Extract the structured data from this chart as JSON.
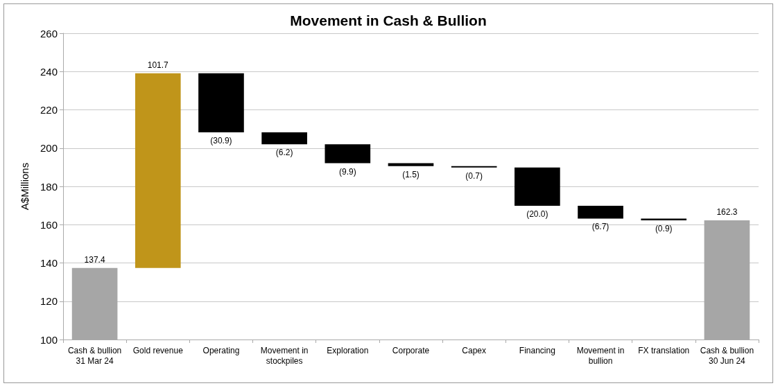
{
  "chart_data": {
    "type": "bar",
    "title": "Movement in Cash & Bullion",
    "ylabel": "A$Millions",
    "categories": [
      "Cash & bullion\n31 Mar 24",
      "Gold revenue",
      "Operating",
      "Movement in\nstockpiles",
      "Exploration",
      "Corporate",
      "Capex",
      "Financing",
      "Movement in\nbullion",
      "FX translation",
      "Cash & bullion\n30 Jun 24"
    ],
    "values": [
      137.4,
      101.7,
      -30.9,
      -6.2,
      -9.9,
      -1.5,
      -0.7,
      -20.0,
      -6.7,
      -0.9,
      162.3
    ],
    "base": [
      null,
      137.4,
      239.1,
      208.2,
      202.0,
      192.1,
      190.6,
      189.9,
      169.9,
      163.2,
      null
    ],
    "colors": [
      "#a6a6a6",
      "#c0951a",
      "#000000",
      "#000000",
      "#000000",
      "#000000",
      "#000000",
      "#000000",
      "#000000",
      "#000000",
      "#a6a6a6"
    ],
    "value_labels": [
      "137.4",
      "101.7",
      "(30.9)",
      "(6.2)",
      "(9.9)",
      "(1.5)",
      "(0.7)",
      "(20.0)",
      "(6.7)",
      "(0.9)",
      "162.3"
    ],
    "ylim": [
      100,
      260
    ],
    "yticks": [
      100,
      120,
      140,
      160,
      180,
      200,
      220,
      240,
      260
    ],
    "grid": "y"
  }
}
